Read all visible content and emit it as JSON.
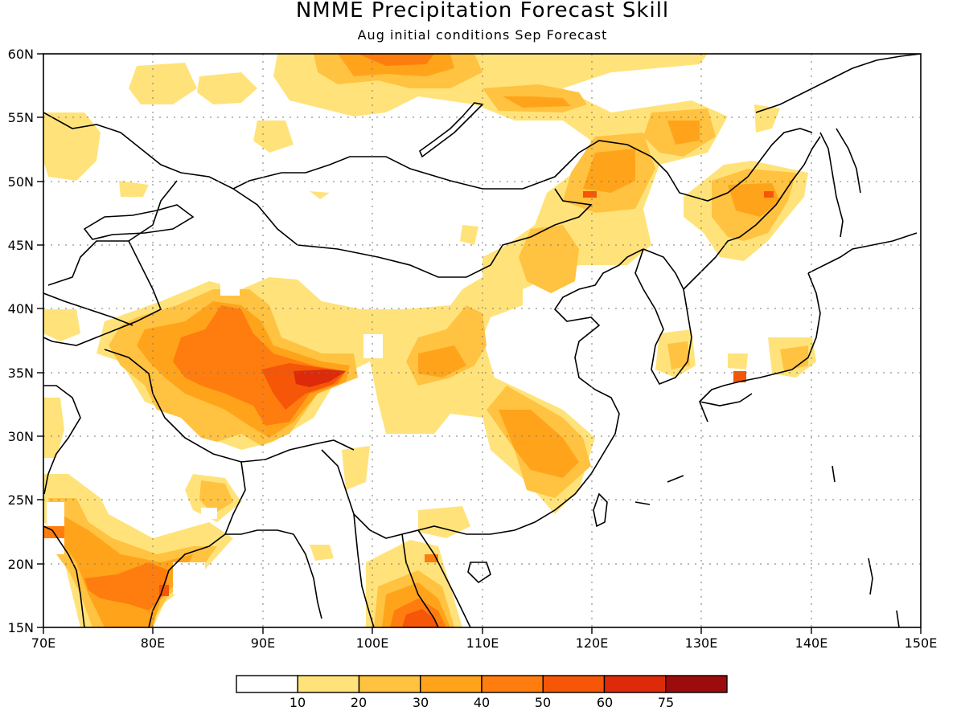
{
  "title": "NMME Precipitation Forecast Skill",
  "subtitle": "Aug initial conditions  Sep Forecast",
  "map": {
    "lon_range": [
      70,
      150
    ],
    "lat_range": [
      15,
      60
    ],
    "lon_ticks": [
      "70E",
      "80E",
      "90E",
      "100E",
      "110E",
      "120E",
      "130E",
      "140E",
      "150E"
    ],
    "lat_ticks": [
      "15N",
      "20N",
      "25N",
      "30N",
      "35N",
      "40N",
      "45N",
      "50N",
      "55N",
      "60N"
    ],
    "grid": "dotted"
  },
  "colorbar": {
    "labels": [
      "10",
      "20",
      "30",
      "40",
      "50",
      "60",
      "75"
    ],
    "colors": [
      "#ffffff",
      "#ffe37a",
      "#ffc241",
      "#ffa41a",
      "#ff7d0e",
      "#f55608",
      "#dd2a0a",
      "#9c0c0c"
    ]
  }
}
